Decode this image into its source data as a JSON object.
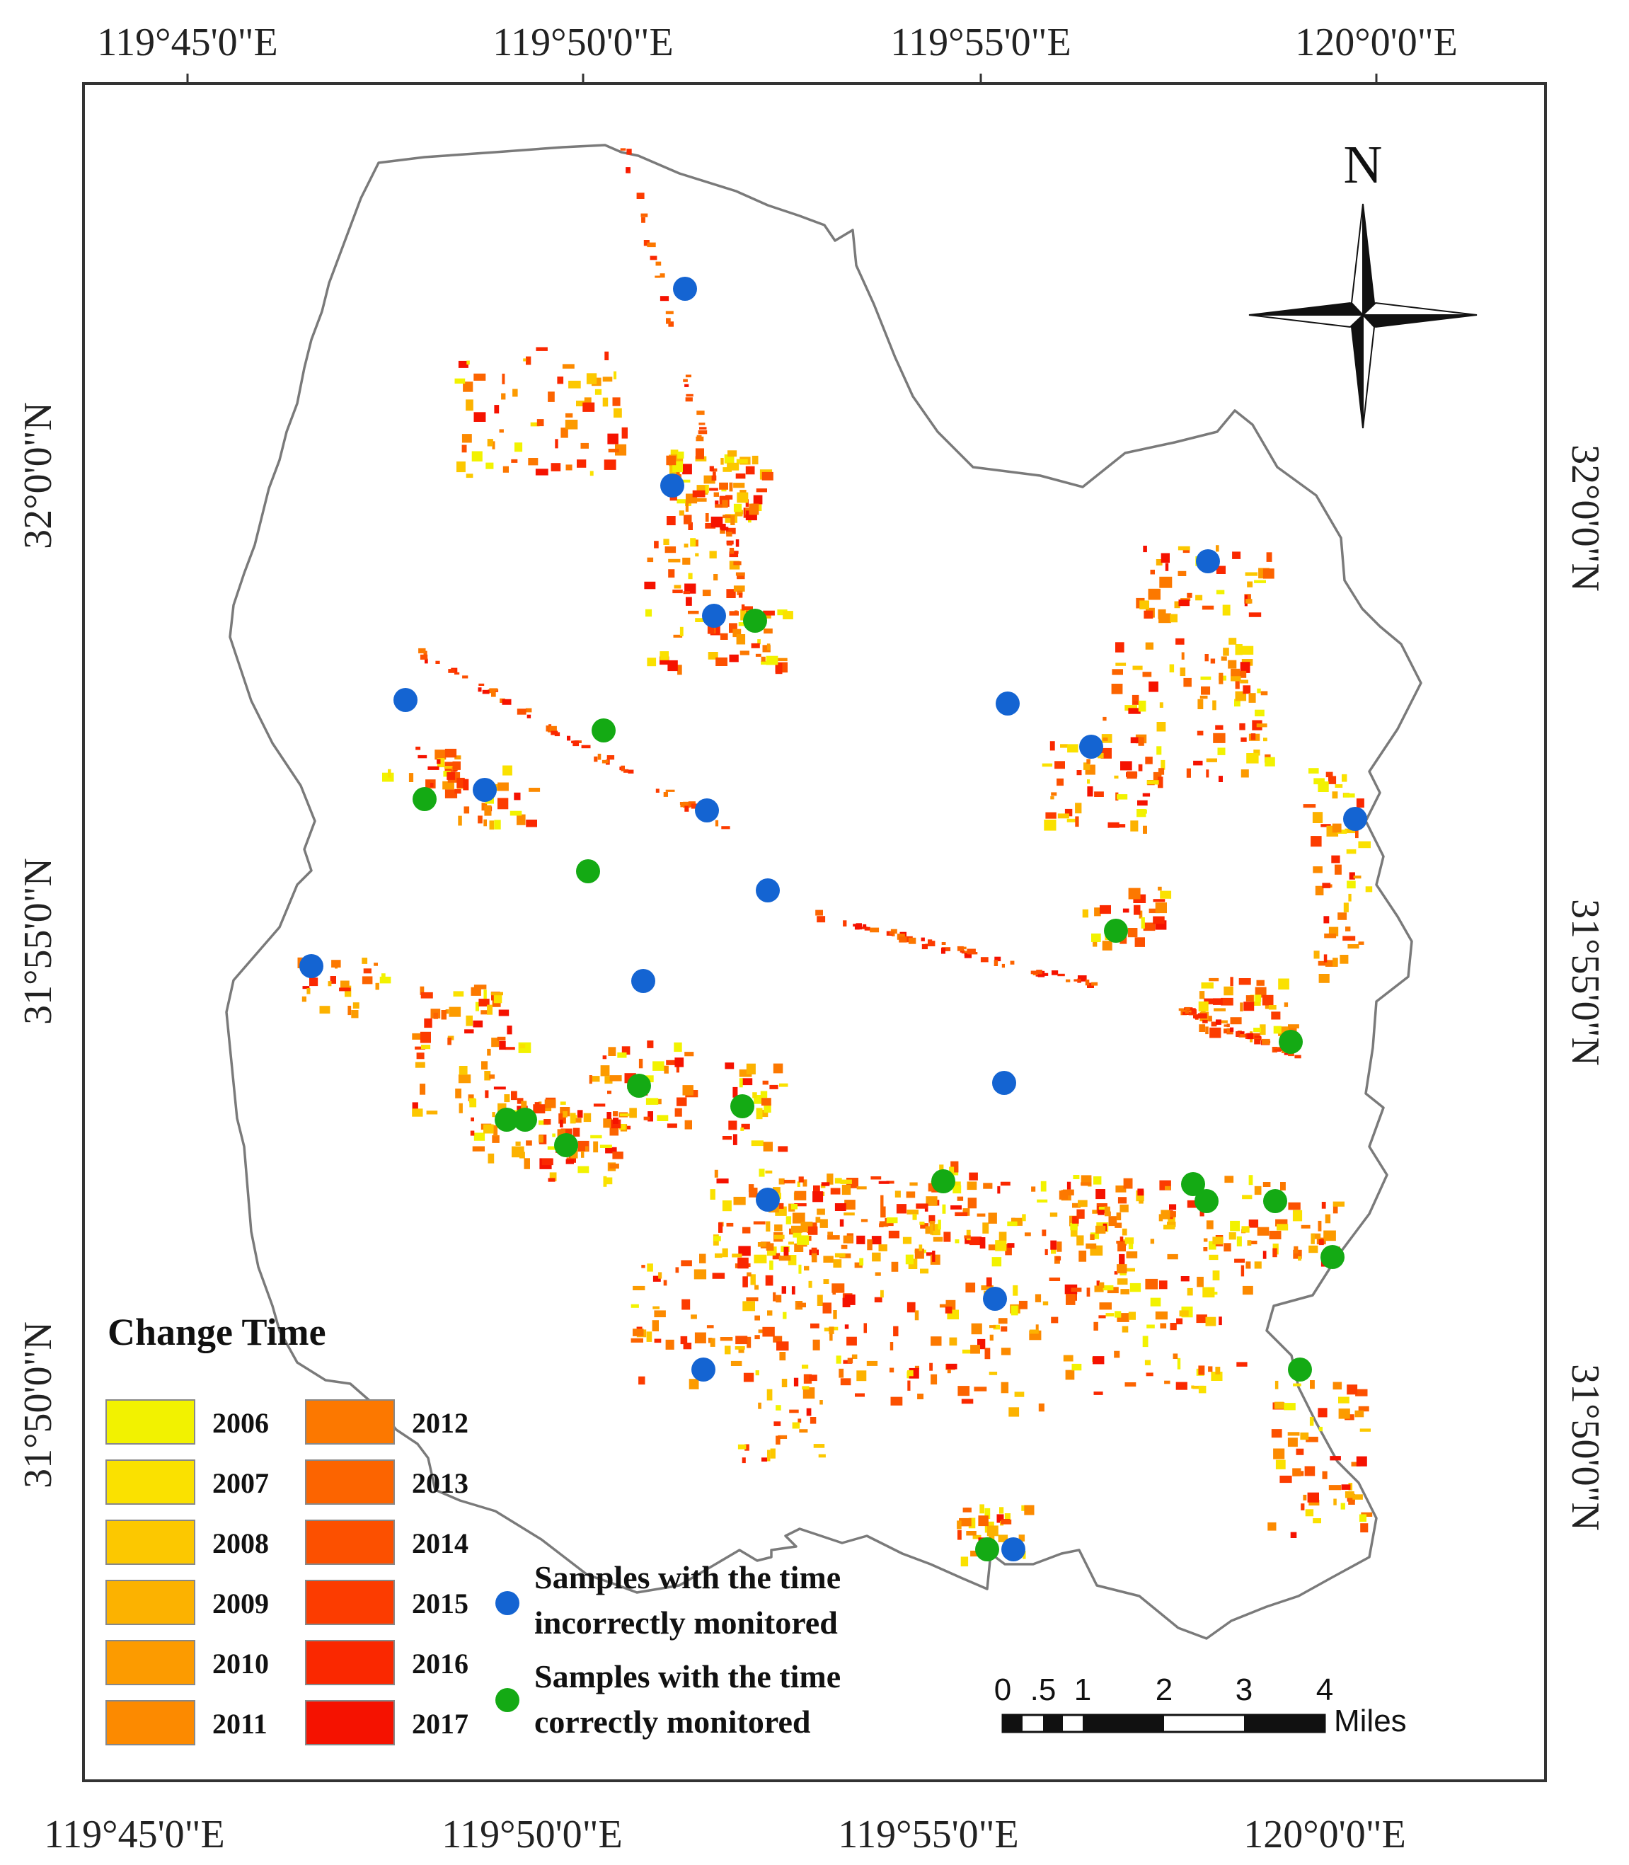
{
  "map": {
    "top_longitudes": [
      "119°45'0\"E",
      "119°50'0\"E",
      "119°55'0\"E",
      "120°0'0\"E"
    ],
    "bottom_longitudes": [
      "119°45'0\"E",
      "119°50'0\"E",
      "119°55'0\"E",
      "120°0'0\"E"
    ],
    "left_latitudes": [
      "32°0'0\"N",
      "31°55'0\"N",
      "31°50'0\"N"
    ],
    "right_latitudes": [
      "32°0'0\"N",
      "31°55'0\"N",
      "31°50'0\"N"
    ],
    "north_label": "N",
    "legend": {
      "title": "Change Time",
      "years": [
        {
          "label": "2006",
          "color": "#f2f200"
        },
        {
          "label": "2007",
          "color": "#fae100"
        },
        {
          "label": "2008",
          "color": "#fcc800"
        },
        {
          "label": "2009",
          "color": "#fcb200"
        },
        {
          "label": "2010",
          "color": "#fc9b00"
        },
        {
          "label": "2011",
          "color": "#fc8a00"
        },
        {
          "label": "2012",
          "color": "#fc7800"
        },
        {
          "label": "2013",
          "color": "#fc6400"
        },
        {
          "label": "2014",
          "color": "#fc5000"
        },
        {
          "label": "2015",
          "color": "#fc3c00"
        },
        {
          "label": "2016",
          "color": "#fa2800"
        },
        {
          "label": "2017",
          "color": "#f51200"
        }
      ]
    },
    "samples": {
      "incorrect": {
        "line1": "Samples with the time",
        "line2": "incorrectly monitored",
        "color": "#1464d2"
      },
      "correct": {
        "line1": "Samples with the time",
        "line2": "correctly monitored",
        "color": "#14aa14"
      }
    },
    "scale_bar": {
      "ticks": [
        "0",
        ".5",
        "1",
        "2",
        "3",
        "4"
      ],
      "unit": "Miles"
    }
  }
}
